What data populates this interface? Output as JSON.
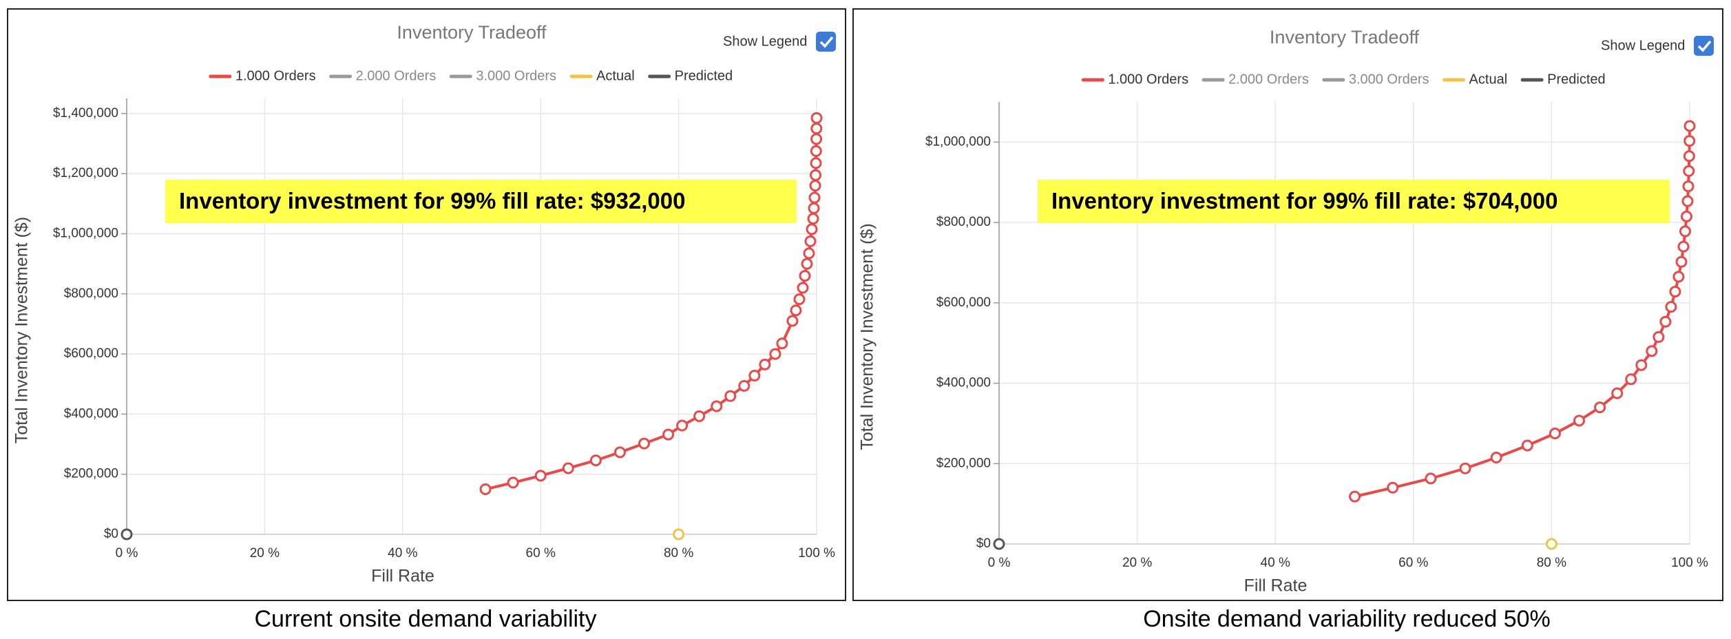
{
  "chart_data": [
    {
      "type": "line",
      "title": "Inventory Tradeoff",
      "legend_toggle": "Show Legend",
      "legend_checked": true,
      "xlabel": "Fill Rate",
      "ylabel": "Total Inventory Investment ($)",
      "annotation": "Inventory investment for 99% fill rate: $932,000",
      "caption": "Current onsite demand variability",
      "xlim": [
        0,
        100
      ],
      "ylim": [
        0,
        1450000
      ],
      "grid": true,
      "xticks": [
        {
          "value": 0,
          "label": "0 %"
        },
        {
          "value": 20,
          "label": "20 %"
        },
        {
          "value": 40,
          "label": "40 %"
        },
        {
          "value": 60,
          "label": "60 %"
        },
        {
          "value": 80,
          "label": "80 %"
        },
        {
          "value": 100,
          "label": "100 %"
        }
      ],
      "yticks": [
        {
          "value": 0,
          "label": "$0"
        },
        {
          "value": 200000,
          "label": "$200,000"
        },
        {
          "value": 400000,
          "label": "$400,000"
        },
        {
          "value": 600000,
          "label": "$600,000"
        },
        {
          "value": 800000,
          "label": "$800,000"
        },
        {
          "value": 1000000,
          "label": "$1,000,000"
        },
        {
          "value": 1200000,
          "label": "$1,200,000"
        },
        {
          "value": 1400000,
          "label": "$1,400,000"
        }
      ],
      "series": [
        {
          "name": "1.000 Orders",
          "color": "#e84a4a",
          "x": [
            52,
            56,
            60,
            64,
            68,
            71.5,
            75,
            78.5,
            80.5,
            83,
            85.5,
            87.5,
            89.5,
            91,
            92.5,
            94,
            95,
            96.5,
            97,
            97.5,
            98,
            98.3,
            98.6,
            98.9,
            99.1,
            99.3,
            99.5,
            99.6,
            99.7,
            99.8,
            99.85,
            99.9,
            99.93,
            99.96,
            99.98,
            100
          ],
          "values": [
            150000,
            172000,
            195000,
            220000,
            246000,
            273000,
            302000,
            332000,
            362000,
            393000,
            426000,
            460000,
            494000,
            528000,
            565000,
            600000,
            635000,
            710000,
            745000,
            782000,
            820000,
            860000,
            900000,
            935000,
            975000,
            1015000,
            1050000,
            1085000,
            1120000,
            1160000,
            1195000,
            1235000,
            1275000,
            1315000,
            1350000,
            1385000
          ]
        },
        {
          "name": "2.000 Orders",
          "color": "#999999",
          "x": [],
          "values": []
        },
        {
          "name": "3.000 Orders",
          "color": "#999999",
          "x": [],
          "values": []
        },
        {
          "name": "Actual",
          "color": "#f5c342",
          "x": [
            80
          ],
          "values": [
            0
          ]
        },
        {
          "name": "Predicted",
          "color": "#555555",
          "x": [
            0
          ],
          "values": [
            0
          ]
        }
      ]
    },
    {
      "type": "line",
      "title": "Inventory Tradeoff",
      "legend_toggle": "Show Legend",
      "legend_checked": true,
      "xlabel": "Fill Rate",
      "ylabel": "Total Inventory Investment ($)",
      "annotation": "Inventory investment for 99% fill rate: $704,000",
      "caption": "Onsite demand variability reduced 50%",
      "xlim": [
        0,
        100
      ],
      "ylim": [
        0,
        1100000
      ],
      "grid": true,
      "xticks": [
        {
          "value": 0,
          "label": "0 %"
        },
        {
          "value": 20,
          "label": "20 %"
        },
        {
          "value": 40,
          "label": "40 %"
        },
        {
          "value": 60,
          "label": "60 %"
        },
        {
          "value": 80,
          "label": "80 %"
        },
        {
          "value": 100,
          "label": "100 %"
        }
      ],
      "yticks": [
        {
          "value": 0,
          "label": "$0"
        },
        {
          "value": 200000,
          "label": "$200,000"
        },
        {
          "value": 400000,
          "label": "$400,000"
        },
        {
          "value": 600000,
          "label": "$600,000"
        },
        {
          "value": 800000,
          "label": "$800,000"
        },
        {
          "value": 1000000,
          "label": "$1,000,000"
        }
      ],
      "series": [
        {
          "name": "1.000 Orders",
          "color": "#e84a4a",
          "x": [
            51.5,
            57,
            62.5,
            67.5,
            72,
            76.5,
            80.5,
            84,
            87,
            89.5,
            91.5,
            93,
            94.5,
            95.5,
            96.5,
            97.3,
            97.9,
            98.4,
            98.8,
            99.1,
            99.35,
            99.55,
            99.7,
            99.8,
            99.88,
            99.94,
            99.97,
            100
          ],
          "values": [
            118000,
            140000,
            163000,
            188000,
            215000,
            245000,
            275000,
            307000,
            340000,
            375000,
            410000,
            445000,
            480000,
            515000,
            553000,
            590000,
            628000,
            665000,
            702000,
            740000,
            778000,
            815000,
            853000,
            890000,
            928000,
            965000,
            1003000,
            1040000
          ]
        },
        {
          "name": "2.000 Orders",
          "color": "#999999",
          "x": [],
          "values": []
        },
        {
          "name": "3.000 Orders",
          "color": "#999999",
          "x": [],
          "values": []
        },
        {
          "name": "Actual",
          "color": "#f5c342",
          "x": [
            80
          ],
          "values": [
            0
          ]
        },
        {
          "name": "Predicted",
          "color": "#555555",
          "x": [
            0
          ],
          "values": [
            0
          ]
        }
      ]
    }
  ]
}
